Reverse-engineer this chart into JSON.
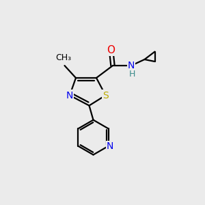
{
  "background_color": "#ebebeb",
  "atom_colors": {
    "C": "#000000",
    "N": "#0000ee",
    "O": "#ee0000",
    "S": "#bbaa00",
    "H": "#3a8a8a"
  },
  "bond_color": "#000000",
  "bond_width": 1.6,
  "fig_size": [
    3.0,
    3.0
  ],
  "dpi": 100
}
